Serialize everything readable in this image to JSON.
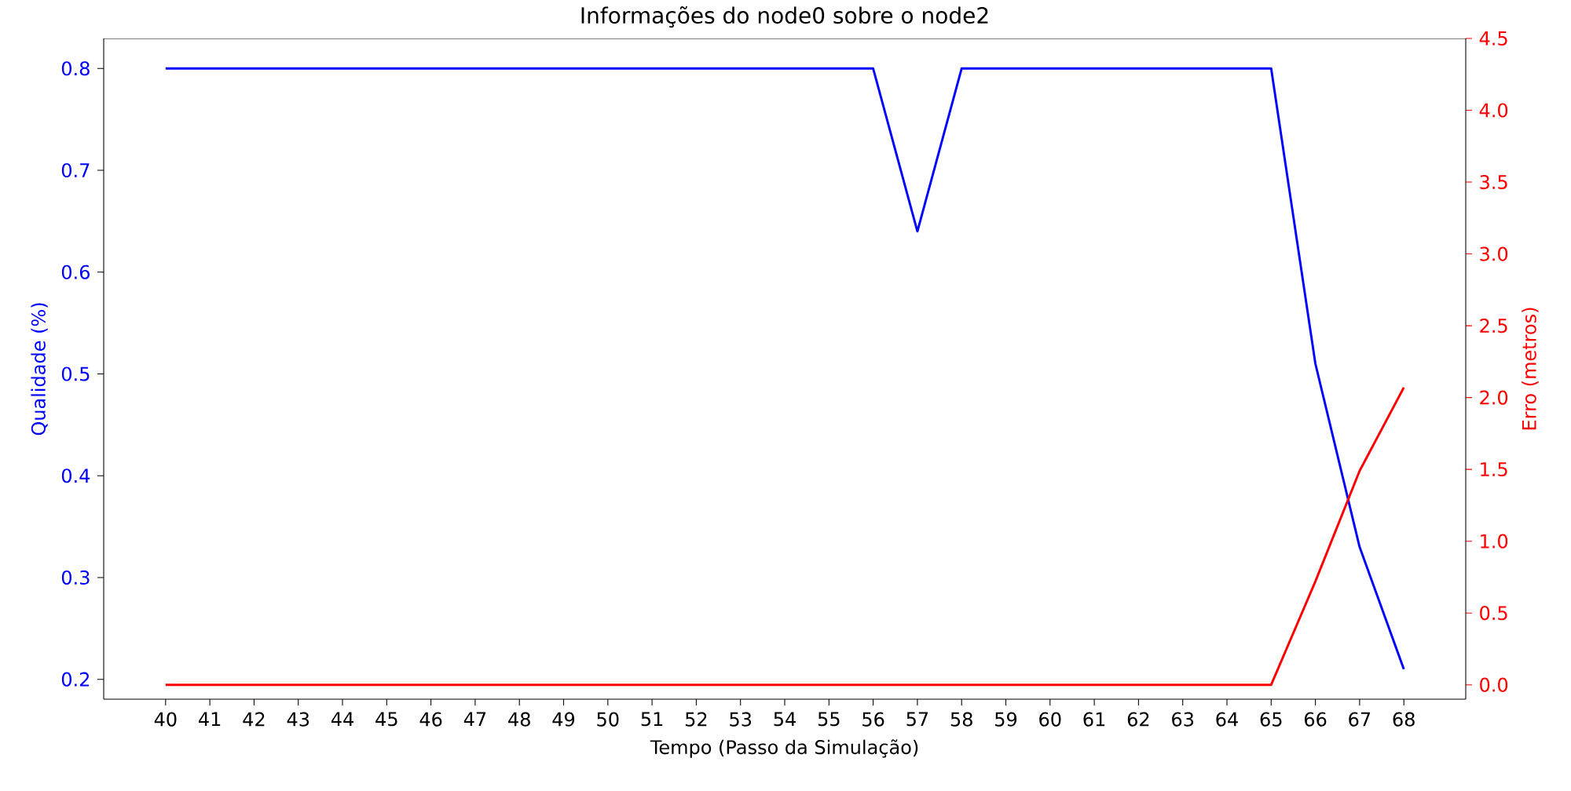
{
  "chart_data": {
    "type": "line",
    "title": "Informações do node0 sobre o node2",
    "xlabel": "Tempo (Passo da Simulação)",
    "ylabel": "Qualidade (%)",
    "y2label": "Erro (metros)",
    "x": [
      40,
      41,
      42,
      43,
      44,
      45,
      46,
      47,
      48,
      49,
      50,
      51,
      52,
      53,
      54,
      55,
      56,
      57,
      58,
      59,
      60,
      61,
      62,
      63,
      64,
      65,
      66,
      67,
      68
    ],
    "xlim": [
      38.6,
      69.4
    ],
    "xticks": [
      40,
      41,
      42,
      43,
      44,
      45,
      46,
      47,
      48,
      49,
      50,
      51,
      52,
      53,
      54,
      55,
      56,
      57,
      58,
      59,
      60,
      61,
      62,
      63,
      64,
      65,
      66,
      67,
      68
    ],
    "ylim": [
      0.1805,
      0.8295
    ],
    "yticks": [
      0.2,
      0.3,
      0.4,
      0.5,
      0.6,
      0.7,
      0.8
    ],
    "y2lim": [
      -0.1,
      4.5
    ],
    "y2ticks": [
      {
        "value": 0,
        "label": "0.0"
      },
      0.5,
      {
        "value": 1,
        "label": "1.0"
      },
      1.5,
      {
        "value": 2,
        "label": "2.0"
      },
      2.5,
      {
        "value": 3,
        "label": "3.0"
      },
      3.5,
      {
        "value": 4,
        "label": "4.0"
      },
      4.5
    ],
    "series": [
      {
        "color": "#0000ff",
        "values": [
          0.8,
          0.8,
          0.8,
          0.8,
          0.8,
          0.8,
          0.8,
          0.8,
          0.8,
          0.8,
          0.8,
          0.8,
          0.8,
          0.8,
          0.8,
          0.8,
          0.8,
          0.64,
          0.8,
          0.8,
          0.8,
          0.8,
          0.8,
          0.8,
          0.8,
          0.8,
          0.51,
          0.33,
          0.21
        ]
      },
      {
        "color": "#ff0000",
        "axis": "y2",
        "values": [
          0,
          0,
          0,
          0,
          0,
          0,
          0,
          0,
          0,
          0,
          0,
          0,
          0,
          0,
          0,
          0,
          0,
          0,
          0,
          0,
          0,
          0,
          0,
          0,
          0,
          0,
          0.72,
          1.49,
          2.07
        ]
      }
    ]
  }
}
